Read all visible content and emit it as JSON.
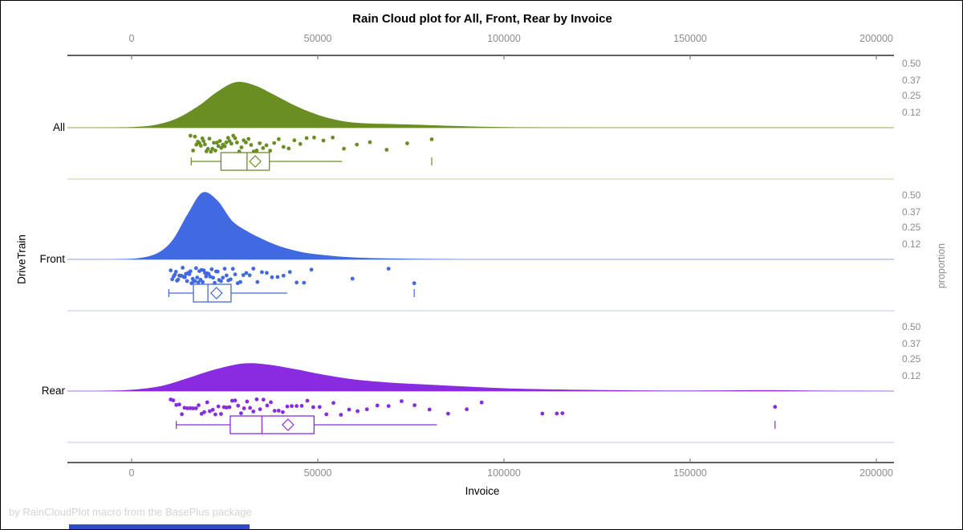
{
  "title": "Rain Cloud plot for All, Front, Rear by Invoice",
  "footer": "by RainCloudPlot macro from the BasePlus package",
  "axes": {
    "x_label": "Invoice",
    "y_label": "DriveTrain",
    "right_label": "proportion",
    "x_tick_labels": [
      "0",
      "50000",
      "100000",
      "150000",
      "200000"
    ],
    "x_tick_values": [
      0,
      50000,
      100000,
      150000,
      200000
    ],
    "proportion_tick_labels": [
      "0.50",
      "0.37",
      "0.25",
      "0.12"
    ],
    "proportion_tick_values": [
      0.5,
      0.37,
      0.25,
      0.12
    ],
    "axis_color": "#2b2b2b",
    "tick_color": "#808080",
    "tick_label_color": "#8c8c8c"
  },
  "colors": {
    "background": "#ffffff",
    "border": "#000000",
    "title_text": "#000000",
    "footer_text": "#d4d4d4",
    "bottom_bar": "#2e4bc6"
  },
  "chart_data": {
    "type": "raincloud",
    "title": "Rain Cloud plot for All, Front, Rear by Invoice",
    "xlabel": "Invoice",
    "group_axis_label": "DriveTrain",
    "proportion_axis_label": "proportion",
    "x_axis": {
      "range": [
        0,
        200000
      ],
      "ticks": [
        0,
        50000,
        100000,
        150000,
        200000
      ]
    },
    "proportion_axis": {
      "ticks": [
        0.5,
        0.37,
        0.25,
        0.12
      ]
    },
    "groups": [
      {
        "name": "All",
        "color": "#6B8E23",
        "baseline_color": "#aabc72",
        "separator_color": "#d0daae",
        "box": {
          "whisker_low": 16000,
          "q1": 24000,
          "median": 31000,
          "mean": 33200,
          "q3": 37000,
          "whisker_high": 56500,
          "outliers": [
            80600
          ]
        },
        "density": [
          [
            -10000,
            0
          ],
          [
            0,
            0.005
          ],
          [
            6000,
            0.02
          ],
          [
            12000,
            0.07
          ],
          [
            18000,
            0.17
          ],
          [
            23000,
            0.28
          ],
          [
            28000,
            0.355
          ],
          [
            33000,
            0.33
          ],
          [
            38000,
            0.26
          ],
          [
            44000,
            0.17
          ],
          [
            50000,
            0.1
          ],
          [
            56000,
            0.055
          ],
          [
            62000,
            0.035
          ],
          [
            70000,
            0.028
          ],
          [
            78000,
            0.022
          ],
          [
            86000,
            0.014
          ],
          [
            95000,
            0.007
          ],
          [
            105000,
            0.003
          ],
          [
            115000,
            0.001
          ],
          [
            125000,
            0
          ]
        ],
        "points": [
          15800,
          16500,
          17000,
          17400,
          17800,
          18200,
          18600,
          19000,
          19300,
          19700,
          20100,
          20500,
          20900,
          21300,
          21700,
          22100,
          22500,
          22900,
          23300,
          23700,
          24100,
          24500,
          25000,
          25400,
          25900,
          26300,
          26800,
          27300,
          27800,
          28300,
          28900,
          29500,
          30100,
          30700,
          31400,
          32100,
          32800,
          33600,
          34400,
          35300,
          36200,
          37200,
          38300,
          39500,
          40800,
          42200,
          43700,
          45300,
          47000,
          49000,
          51500,
          54000,
          57000,
          60500,
          64000,
          68500,
          74000,
          80600
        ]
      },
      {
        "name": "Front",
        "color": "#4169E1",
        "baseline_color": "#9db4e8",
        "separator_color": "#c6d4f0",
        "box": {
          "whisker_low": 10000,
          "q1": 16600,
          "median": 20500,
          "mean": 22800,
          "q3": 26700,
          "whisker_high": 41800,
          "outliers": [
            75900
          ]
        },
        "density": [
          [
            -5000,
            0
          ],
          [
            2000,
            0.01
          ],
          [
            7000,
            0.05
          ],
          [
            11000,
            0.15
          ],
          [
            15000,
            0.35
          ],
          [
            19000,
            0.52
          ],
          [
            23000,
            0.46
          ],
          [
            27000,
            0.3
          ],
          [
            31000,
            0.22
          ],
          [
            35000,
            0.16
          ],
          [
            40000,
            0.1
          ],
          [
            46000,
            0.055
          ],
          [
            53000,
            0.03
          ],
          [
            60000,
            0.015
          ],
          [
            70000,
            0.007
          ],
          [
            80000,
            0.003
          ],
          [
            90000,
            0
          ]
        ],
        "points": [
          10500,
          10900,
          11300,
          11600,
          11900,
          12200,
          12500,
          12800,
          13100,
          13400,
          13700,
          14000,
          14300,
          14600,
          14900,
          15200,
          15500,
          15800,
          16100,
          16400,
          16700,
          17000,
          17300,
          17600,
          17900,
          18200,
          18500,
          18800,
          19100,
          19400,
          19700,
          20000,
          20300,
          20700,
          21100,
          21500,
          21900,
          22300,
          22700,
          23100,
          23500,
          24000,
          24500,
          25000,
          25500,
          26000,
          26600,
          27200,
          27800,
          28500,
          29200,
          30000,
          30800,
          31700,
          32700,
          33800,
          35000,
          36300,
          37700,
          39200,
          40800,
          42500,
          44300,
          46300,
          48300,
          59300,
          69000,
          75900
        ]
      },
      {
        "name": "Rear",
        "color": "#8A2BE2",
        "baseline_color": "#bd8fe8",
        "separator_color": "#dcc6f2",
        "box": {
          "whisker_low": 12000,
          "q1": 26500,
          "median": 35000,
          "mean": 42000,
          "q3": 49000,
          "whisker_high": 82000,
          "outliers": [
            172800
          ]
        },
        "density": [
          [
            -10000,
            0
          ],
          [
            0,
            0.01
          ],
          [
            8000,
            0.04
          ],
          [
            15000,
            0.1
          ],
          [
            22000,
            0.165
          ],
          [
            30000,
            0.215
          ],
          [
            37000,
            0.205
          ],
          [
            44000,
            0.17
          ],
          [
            52000,
            0.125
          ],
          [
            60000,
            0.09
          ],
          [
            70000,
            0.065
          ],
          [
            80000,
            0.05
          ],
          [
            90000,
            0.035
          ],
          [
            100000,
            0.022
          ],
          [
            110000,
            0.015
          ],
          [
            120000,
            0.01
          ],
          [
            132000,
            0.006
          ],
          [
            145000,
            0.004
          ],
          [
            158000,
            0.005
          ],
          [
            168000,
            0.007
          ],
          [
            175000,
            0.006
          ],
          [
            185000,
            0.003
          ],
          [
            195000,
            0.001
          ],
          [
            204000,
            0
          ]
        ],
        "points": [
          10500,
          11200,
          12000,
          12800,
          13500,
          14200,
          15000,
          15800,
          16500,
          17300,
          18000,
          18800,
          19500,
          20300,
          21000,
          21800,
          22500,
          23300,
          24000,
          24800,
          25500,
          26300,
          27000,
          27800,
          28600,
          29400,
          30200,
          31000,
          31800,
          32700,
          33600,
          34500,
          35400,
          36400,
          37400,
          38400,
          39500,
          40600,
          41800,
          43000,
          44300,
          45700,
          47200,
          48800,
          50500,
          52300,
          54200,
          56200,
          58400,
          60700,
          63200,
          66000,
          69000,
          72500,
          76000,
          80000,
          85000,
          90000,
          94000,
          110300,
          114200,
          115700,
          172800
        ]
      }
    ]
  }
}
